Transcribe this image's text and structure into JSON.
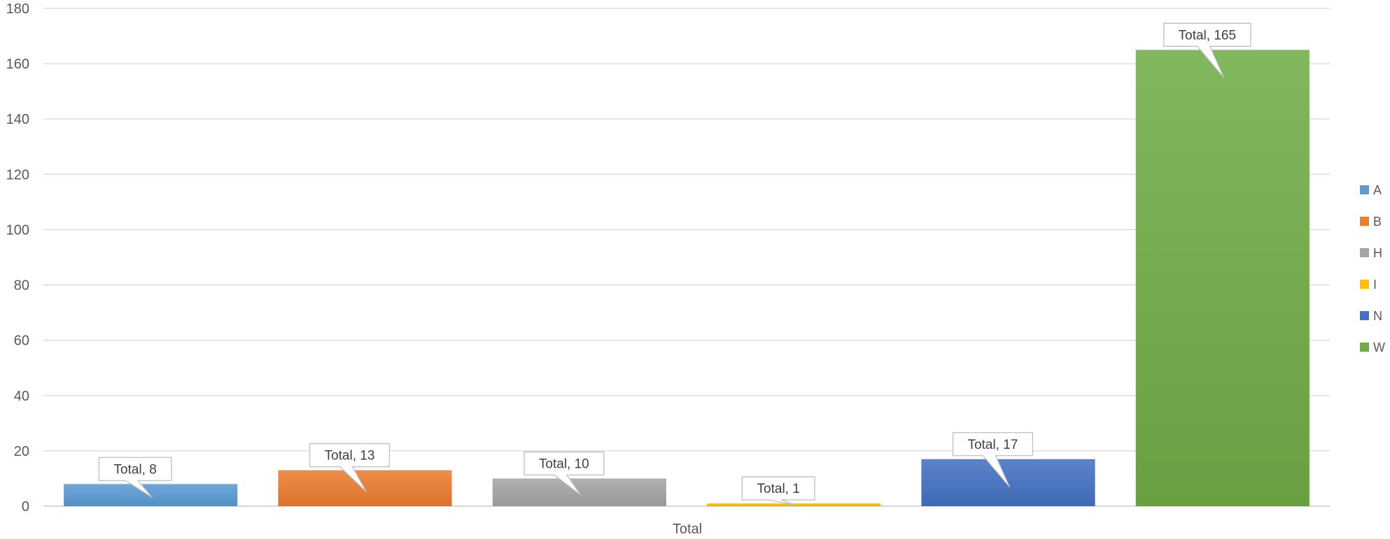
{
  "chart_data": {
    "type": "bar",
    "categories": [
      "Total"
    ],
    "xlabel": "Total",
    "ylim": [
      0,
      180
    ],
    "yticks": [
      0,
      20,
      40,
      60,
      80,
      100,
      120,
      140,
      160,
      180
    ],
    "grid": true,
    "legend_position": "right",
    "series": [
      {
        "name": "A",
        "values": [
          8
        ],
        "color": "#5B9BD5",
        "label": "Total, 8"
      },
      {
        "name": "B",
        "values": [
          13
        ],
        "color": "#ED7D31",
        "label": "Total, 13"
      },
      {
        "name": "H",
        "values": [
          10
        ],
        "color": "#A5A5A5",
        "label": "Total, 10"
      },
      {
        "name": "I",
        "values": [
          1
        ],
        "color": "#FFC000",
        "label": "Total, 1"
      },
      {
        "name": "N",
        "values": [
          17
        ],
        "color": "#4472C4",
        "label": "Total, 17"
      },
      {
        "name": "W",
        "values": [
          165
        ],
        "color": "#70AD47",
        "label": "Total, 165"
      }
    ]
  }
}
